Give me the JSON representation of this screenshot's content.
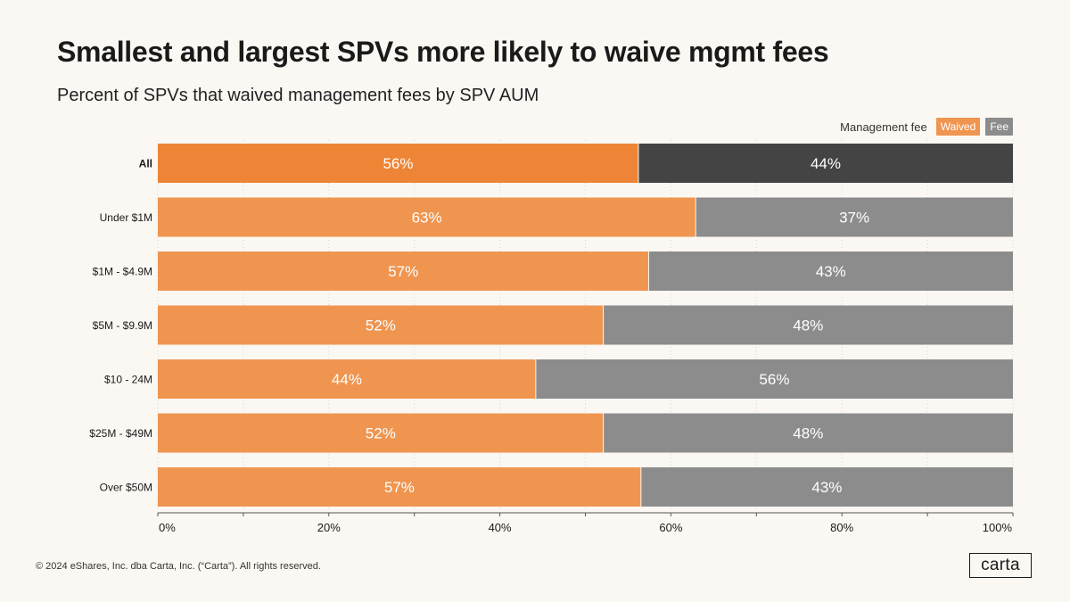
{
  "header": {
    "title": "Smallest and largest SPVs more likely to waive mgmt fees",
    "subtitle": "Percent of SPVs that waived management fees by SPV AUM"
  },
  "legend": {
    "title": "Management fee",
    "waived_label": "Waived",
    "fee_label": "Fee"
  },
  "colors": {
    "waived": "#ef9550",
    "waived_highlight": "#ee8536",
    "fee": "#8c8c8c",
    "fee_highlight": "#444444",
    "grid": "#d9d4cd"
  },
  "chart_data": {
    "type": "bar",
    "orientation": "horizontal",
    "stacked": true,
    "title": "Smallest and largest SPVs more likely to waive mgmt fees",
    "subtitle": "Percent of SPVs that waived management fees by SPV AUM",
    "categories": [
      "All",
      "Under $1M",
      "$1M - $4.9M",
      "$5M - $9.9M",
      "$10 - 24M",
      "$25M - $49M",
      "Over $50M"
    ],
    "series": [
      {
        "name": "Waived",
        "values": [
          56.2,
          62.9,
          57.4,
          52.1,
          44.2,
          52.1,
          56.5
        ],
        "labels": [
          "56%",
          "63%",
          "57%",
          "52%",
          "44%",
          "52%",
          "57%"
        ]
      },
      {
        "name": "Fee",
        "values": [
          43.8,
          37.1,
          42.6,
          47.9,
          55.8,
          47.9,
          43.5
        ],
        "labels": [
          "44%",
          "37%",
          "43%",
          "48%",
          "56%",
          "48%",
          "43%"
        ]
      }
    ],
    "highlight_category": "All",
    "xlim": [
      0,
      100
    ],
    "x_ticks": [
      "0%",
      "20%",
      "40%",
      "60%",
      "80%",
      "100%"
    ],
    "xlabel": "",
    "ylabel": "",
    "legend_position": "top-right"
  },
  "footer": {
    "copyright": "© 2024 eShares, Inc. dba Carta, Inc. (“Carta”). All rights reserved.",
    "logo_text": "carta"
  }
}
